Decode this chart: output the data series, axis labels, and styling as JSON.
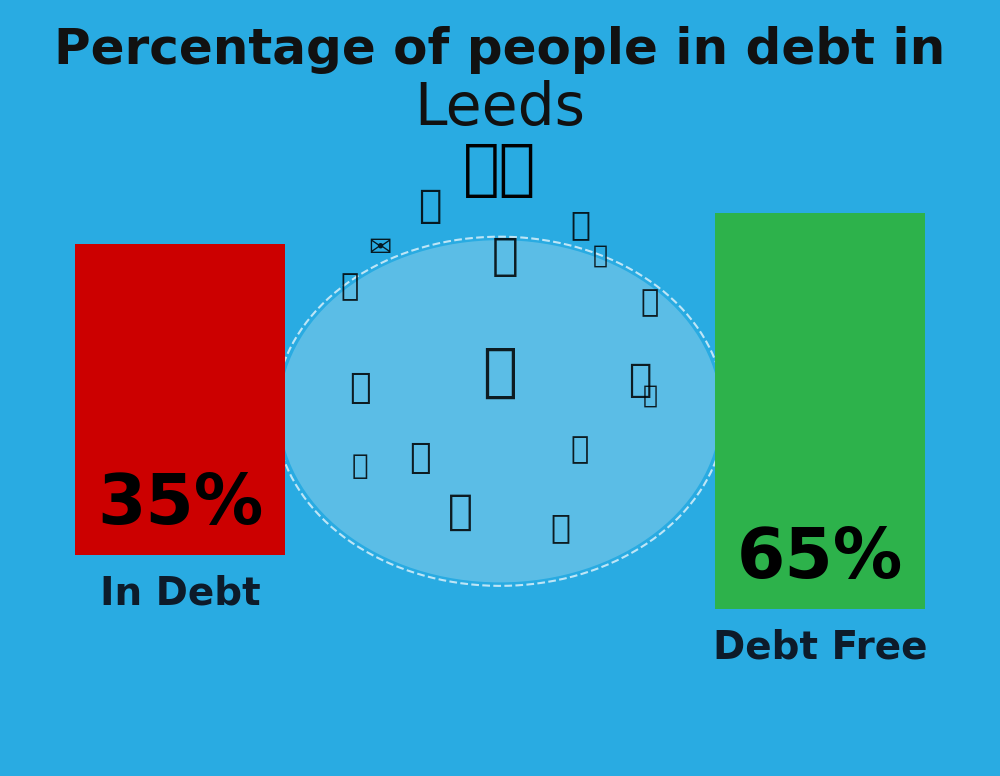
{
  "title_line1": "Percentage of people in debt in",
  "title_line2": "Leeds",
  "flag_emoji": "🇬🇧",
  "background_color": "#29ABE2",
  "bar1_value": 35,
  "bar1_label": "In Debt",
  "bar1_color": "#CC0000",
  "bar1_text": "35%",
  "bar2_value": 65,
  "bar2_label": "Debt Free",
  "bar2_color": "#2DB24B",
  "bar2_text": "65%",
  "title_fontsize": 36,
  "title2_fontsize": 42,
  "bar_label_fontsize": 28,
  "pct_fontsize": 50,
  "title_color": "#111111",
  "bar_text_color": "#000000",
  "label_color": "#0d1b2a"
}
